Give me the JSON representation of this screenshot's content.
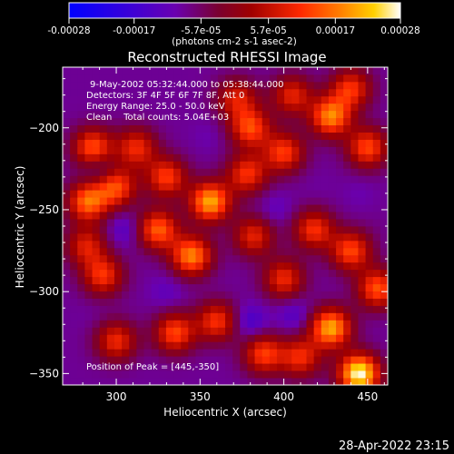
{
  "chart_data": {
    "type": "heatmap",
    "title": "Reconstructed RHESSI Image",
    "xlabel": "Heliocentric X (arcsec)",
    "ylabel": "Heliocentric Y (arcsec)",
    "xlim": [
      268,
      462
    ],
    "ylim": [
      -357,
      -163
    ],
    "x_ticks": [
      300,
      350,
      400,
      450
    ],
    "y_ticks": [
      -200,
      -250,
      -300,
      -350
    ],
    "colorbar": {
      "min": -0.00028,
      "max": 0.00028,
      "tick_labels": [
        "-0.00028",
        "-0.00017",
        "-5.7e-05",
        "5.7e-05",
        "0.00017",
        "0.00028"
      ],
      "tick_values": [
        -0.00028,
        -0.00017,
        -5.7e-05,
        5.7e-05,
        0.00017,
        0.00028
      ],
      "unit": "(photons cm-2 s-1 asec-2)"
    },
    "annotations": [
      "9-May-2002 05:32:44.000 to 05:38:44.000",
      "Detectors: 3F 4F 5F 6F 7F 8F, Att 0",
      "Energy Range: 25.0 - 50.0 keV",
      "Clean    Total counts: 5.04E+03"
    ],
    "peak_label": "Position of Peak = [445,-350]",
    "peak": [
      445,
      -350
    ],
    "blobs": [
      {
        "x": 356,
        "y": -245,
        "value": 0.00021
      },
      {
        "x": 345,
        "y": -278,
        "value": 0.00018
      },
      {
        "x": 325,
        "y": -262,
        "value": 0.00015
      },
      {
        "x": 330,
        "y": -230,
        "value": 0.00012
      },
      {
        "x": 312,
        "y": -212,
        "value": 0.0001
      },
      {
        "x": 300,
        "y": -236,
        "value": 0.00013
      },
      {
        "x": 283,
        "y": -245,
        "value": 0.00016
      },
      {
        "x": 286,
        "y": -212,
        "value": 0.00014
      },
      {
        "x": 292,
        "y": -290,
        "value": 0.00011
      },
      {
        "x": 380,
        "y": -200,
        "value": 0.00013
      },
      {
        "x": 378,
        "y": -228,
        "value": 0.00011
      },
      {
        "x": 400,
        "y": -215,
        "value": 0.00012
      },
      {
        "x": 428,
        "y": -193,
        "value": 0.00018
      },
      {
        "x": 450,
        "y": -212,
        "value": 0.00013
      },
      {
        "x": 440,
        "y": -176,
        "value": 0.00011
      },
      {
        "x": 418,
        "y": -262,
        "value": 0.00011
      },
      {
        "x": 440,
        "y": -275,
        "value": 0.00013
      },
      {
        "x": 456,
        "y": -298,
        "value": 0.00014
      },
      {
        "x": 428,
        "y": -322,
        "value": 0.00021
      },
      {
        "x": 445,
        "y": -350,
        "value": 0.00028
      },
      {
        "x": 400,
        "y": -292,
        "value": 0.0001
      },
      {
        "x": 360,
        "y": -318,
        "value": 0.00011
      },
      {
        "x": 335,
        "y": -325,
        "value": 0.00013
      },
      {
        "x": 300,
        "y": -330,
        "value": 0.0001
      },
      {
        "x": 388,
        "y": -338,
        "value": 0.00012
      },
      {
        "x": 410,
        "y": -340,
        "value": 0.0001
      },
      {
        "x": 382,
        "y": -266,
        "value": 9e-05
      },
      {
        "x": 282,
        "y": -272,
        "value": 8e-05
      },
      {
        "x": 372,
        "y": -182,
        "value": 8e-05
      },
      {
        "x": 405,
        "y": -180,
        "value": 9e-05
      }
    ],
    "minima": [
      {
        "x": 290,
        "y": -225,
        "value": -0.00015
      },
      {
        "x": 305,
        "y": -262,
        "value": -0.00014
      },
      {
        "x": 330,
        "y": -300,
        "value": -0.00012
      },
      {
        "x": 380,
        "y": -318,
        "value": -0.00016
      },
      {
        "x": 406,
        "y": -314,
        "value": -0.00014
      },
      {
        "x": 395,
        "y": -250,
        "value": -0.00012
      },
      {
        "x": 355,
        "y": -205,
        "value": -0.0001
      },
      {
        "x": 445,
        "y": -240,
        "value": -0.0001
      },
      {
        "x": 420,
        "y": -235,
        "value": -9e-05
      },
      {
        "x": 455,
        "y": -260,
        "value": -8e-05
      },
      {
        "x": 285,
        "y": -315,
        "value": -9e-05
      }
    ]
  },
  "footer": {
    "timestamp": "28-Apr-2022 23:15"
  }
}
